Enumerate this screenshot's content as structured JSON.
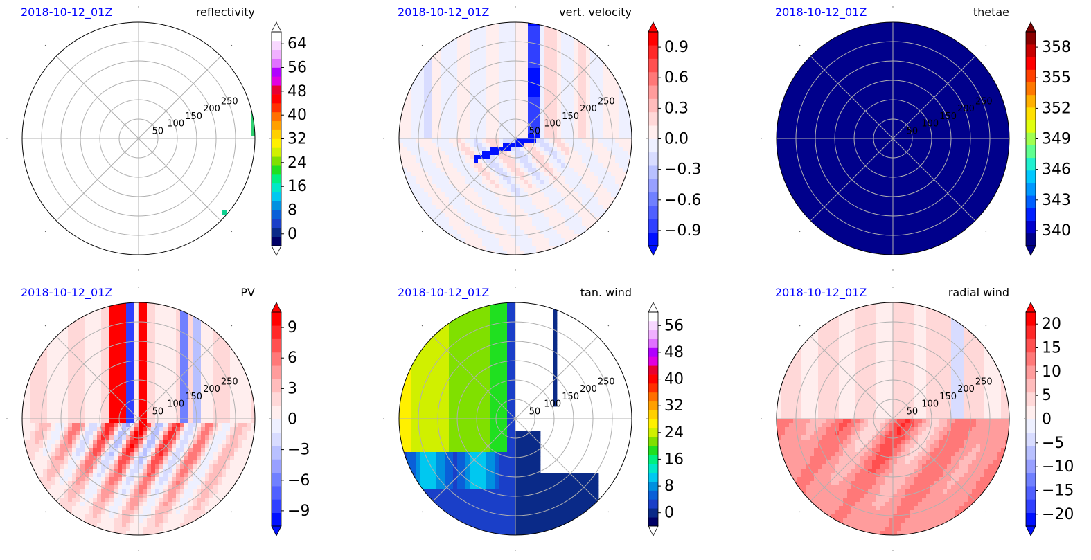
{
  "chart_data": [
    {
      "type": "heatmap",
      "subtype": "polar",
      "timestamp": "2018-10-12_01Z",
      "title": "reflectivity",
      "radial_ticks": [
        "50",
        "100",
        "150",
        "200",
        "250"
      ],
      "colorbar": {
        "ticks": [
          "0",
          "8",
          "16",
          "24",
          "32",
          "40",
          "48",
          "56",
          "64"
        ],
        "colors": [
          "#000066",
          "#0a2a88",
          "#1a3fc8",
          "#0a5fd8",
          "#0090e0",
          "#00c8f0",
          "#00e8c8",
          "#00f080",
          "#20e020",
          "#80e000",
          "#d0f000",
          "#fff000",
          "#ffd000",
          "#ffa000",
          "#ff7000",
          "#ff3000",
          "#ff0000",
          "#e80030",
          "#e000e0",
          "#b000ff",
          "#e070ff",
          "#f0b0ff",
          "#f8d8ff",
          "#ffffff"
        ],
        "extend": "both",
        "extend_lower": "#ffffff",
        "extend_upper": "#ffffff"
      },
      "field": "reflectivity"
    },
    {
      "type": "heatmap",
      "subtype": "polar",
      "timestamp": "2018-10-12_01Z",
      "title": "vert. velocity",
      "radial_ticks": [
        "50",
        "100",
        "150",
        "200",
        "250"
      ],
      "colorbar": {
        "ticks": [
          "−0.9",
          "−0.6",
          "−0.3",
          "0.0",
          "0.3",
          "0.6",
          "0.9"
        ],
        "colors": [
          "#0010ff",
          "#3040ff",
          "#5060ff",
          "#7080ff",
          "#98a0ff",
          "#b8c0ff",
          "#d8dcff",
          "#eef0ff",
          "#ffeeee",
          "#ffd8d8",
          "#ffbcbc",
          "#ff9c9c",
          "#ff7878",
          "#ff5050",
          "#ff2828",
          "#ff0000"
        ],
        "extend": "both",
        "extend_lower": "#0010ff",
        "extend_upper": "#ff0000"
      },
      "field": "diverging"
    },
    {
      "type": "heatmap",
      "subtype": "polar",
      "timestamp": "2018-10-12_01Z",
      "title": "thetae",
      "radial_ticks": [
        "50",
        "100",
        "150",
        "200",
        "250"
      ],
      "colorbar": {
        "ticks": [
          "340",
          "343",
          "346",
          "349",
          "352",
          "355",
          "358"
        ],
        "colors": [
          "#000088",
          "#0000cc",
          "#0020ff",
          "#0060ff",
          "#0098ff",
          "#00c8ff",
          "#20f0d0",
          "#60ff90",
          "#a0ff50",
          "#e0ff10",
          "#ffe000",
          "#ffb000",
          "#ff7800",
          "#ff4000",
          "#ff0000",
          "#c80000",
          "#8b0000"
        ],
        "extend": "both",
        "extend_lower": "#000088",
        "extend_upper": "#7a0000"
      },
      "field": "uniform",
      "fill": "#00008b"
    },
    {
      "type": "heatmap",
      "subtype": "polar",
      "timestamp": "2018-10-12_01Z",
      "title": "PV",
      "radial_ticks": [
        "50",
        "100",
        "150",
        "200",
        "250"
      ],
      "colorbar": {
        "ticks": [
          "−9",
          "−6",
          "−3",
          "0",
          "3",
          "6",
          "9"
        ],
        "colors": [
          "#0010ff",
          "#3040ff",
          "#5060ff",
          "#7080ff",
          "#98a0ff",
          "#b8c0ff",
          "#d8dcff",
          "#eef0ff",
          "#ffeeee",
          "#ffd8d8",
          "#ffbcbc",
          "#ff9c9c",
          "#ff7878",
          "#ff5050",
          "#ff2828",
          "#ff0000"
        ],
        "extend": "both",
        "extend_lower": "#0010ff",
        "extend_upper": "#ff0000"
      },
      "field": "pv"
    },
    {
      "type": "heatmap",
      "subtype": "polar",
      "timestamp": "2018-10-12_01Z",
      "title": "tan. wind",
      "radial_ticks": [
        "50",
        "100",
        "150",
        "200",
        "250"
      ],
      "colorbar": {
        "ticks": [
          "0",
          "8",
          "16",
          "24",
          "32",
          "40",
          "48",
          "56"
        ],
        "colors": [
          "#000066",
          "#0a2a88",
          "#1a3fc8",
          "#0a5fd8",
          "#0090e0",
          "#00c8f0",
          "#00e8c8",
          "#00f080",
          "#20e020",
          "#80e000",
          "#d0f000",
          "#fff000",
          "#ffd000",
          "#ffa000",
          "#ff7000",
          "#ff3000",
          "#ff0000",
          "#e80030",
          "#e000e0",
          "#b000ff",
          "#e070ff",
          "#f0b0ff",
          "#f8d8ff",
          "#ffffff"
        ],
        "extend": "both",
        "extend_lower": "#ffffff",
        "extend_upper": "#ffffff"
      },
      "field": "tanwind"
    },
    {
      "type": "heatmap",
      "subtype": "polar",
      "timestamp": "2018-10-12_01Z",
      "title": "radial wind",
      "radial_ticks": [
        "50",
        "100",
        "150",
        "200",
        "250"
      ],
      "colorbar": {
        "ticks": [
          "−20",
          "−15",
          "−10",
          "−5",
          "0",
          "5",
          "10",
          "15",
          "20"
        ],
        "colors": [
          "#0010ff",
          "#3040ff",
          "#5060ff",
          "#7080ff",
          "#98a0ff",
          "#b8c0ff",
          "#d8dcff",
          "#eef0ff",
          "#ffeeee",
          "#ffd8d8",
          "#ffbcbc",
          "#ff9c9c",
          "#ff7878",
          "#ff5050",
          "#ff2828",
          "#ff0000"
        ],
        "extend": "both",
        "extend_lower": "#0010ff",
        "extend_upper": "#ff0000"
      },
      "field": "radial"
    }
  ],
  "colors": {
    "timestamp": "#0000ff",
    "grid": "#b0b0b0",
    "outline": "#000000"
  }
}
